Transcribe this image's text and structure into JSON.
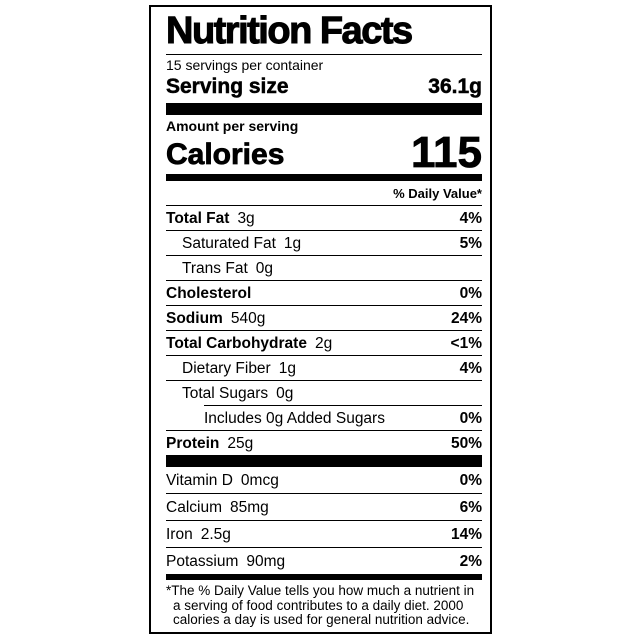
{
  "label": {
    "title": "Nutrition Facts",
    "servings_per_container": "15 servings per container",
    "serving_size_label": "Serving size",
    "serving_size_value": "36.1g",
    "amount_per_serving": "Amount per serving",
    "calories_label": "Calories",
    "calories_value": "115",
    "daily_value_header": "% Daily Value*",
    "nutrients": [
      {
        "name": "Total Fat",
        "amount": "3g",
        "dv": "4%"
      },
      {
        "name": "Saturated Fat",
        "amount": "1g",
        "dv": "5%"
      },
      {
        "name": "Trans Fat",
        "amount": "0g",
        "dv": ""
      },
      {
        "name": "Cholesterol",
        "amount": "",
        "dv": "0%"
      },
      {
        "name": "Sodium",
        "amount": "540g",
        "dv": "24%"
      },
      {
        "name": "Total Carbohydrate",
        "amount": "2g",
        "dv": "<1%"
      },
      {
        "name": "Dietary Fiber",
        "amount": "1g",
        "dv": "4%"
      },
      {
        "name": "Total Sugars",
        "amount": "0g",
        "dv": ""
      },
      {
        "name": "Includes 0g Added Sugars",
        "amount": "",
        "dv": "0%"
      },
      {
        "name": "Protein",
        "amount": "25g",
        "dv": "50%"
      }
    ],
    "micronutrients": [
      {
        "name": "Vitamin D",
        "amount": "0mcg",
        "dv": "0%"
      },
      {
        "name": "Calcium",
        "amount": "85mg",
        "dv": "6%"
      },
      {
        "name": "Iron",
        "amount": "2.5g",
        "dv": "14%"
      },
      {
        "name": "Potassium",
        "amount": "90mg",
        "dv": "2%"
      }
    ],
    "footnote": "*The % Daily Value tells you how much a nutrient in a serving of food contributes to a daily diet. 2000 calories a day is used for general nutrition advice.",
    "colors": {
      "text": "#000000",
      "background": "#ffffff",
      "rule": "#000000"
    }
  }
}
